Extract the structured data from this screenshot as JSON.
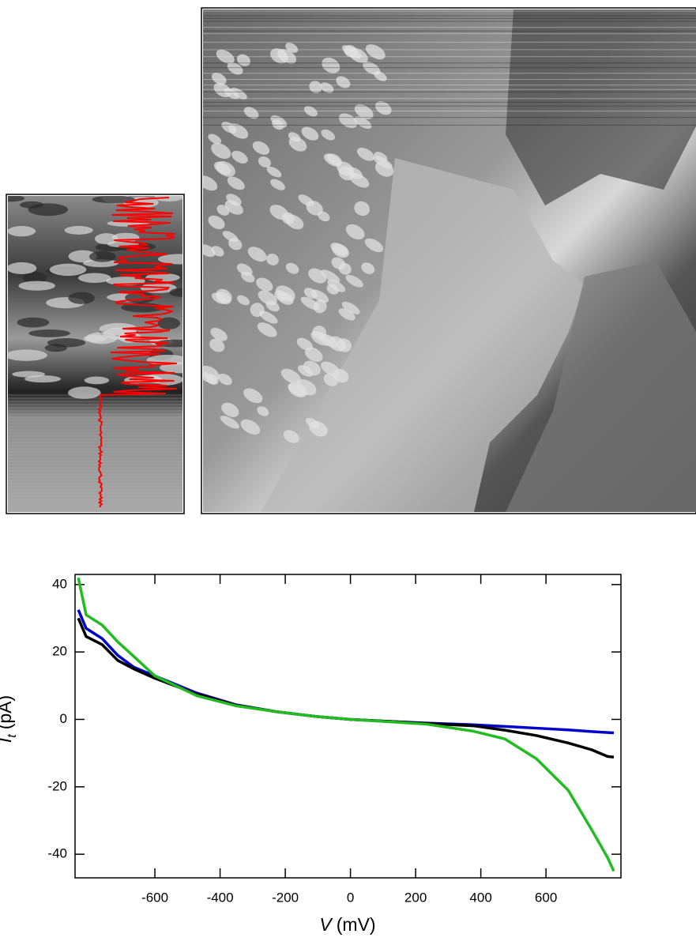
{
  "chart_data": {
    "type": "line",
    "xlabel": {
      "symbol": "V",
      "unit": "(mV)"
    },
    "ylabel": {
      "symbol": "I",
      "subscript": "t",
      "unit": "(pA)"
    },
    "x": [
      -835,
      -811,
      -762,
      -714,
      -665,
      -600,
      -471,
      -350,
      -229,
      -100,
      0,
      100,
      232,
      377,
      474,
      571,
      668,
      740,
      789,
      808
    ],
    "series": [
      {
        "color": "#0000cc",
        "values": [
          32.5,
          27,
          24,
          19,
          15.5,
          12.9,
          7.8,
          4.3,
          2.3,
          0.8,
          0,
          -0.5,
          -1.1,
          -1.6,
          -2.1,
          -2.6,
          -3.1,
          -3.6,
          -3.9,
          -4
        ]
      },
      {
        "color": "#000000",
        "values": [
          30,
          24.6,
          22.2,
          17.5,
          15,
          12.2,
          7.5,
          4.2,
          2.3,
          0.8,
          0,
          -0.5,
          -1.2,
          -1.9,
          -3.2,
          -4.8,
          -7,
          -9,
          -11,
          -11.2
        ]
      },
      {
        "color": "#22bb22",
        "values": [
          42,
          31,
          28,
          23,
          18.7,
          12.9,
          7,
          4,
          2.3,
          0.8,
          0,
          -0.6,
          -1.4,
          -3.5,
          -5.8,
          -11.7,
          -21,
          -32.7,
          -41,
          -45
        ]
      }
    ],
    "xlim": [
      -845,
      830
    ],
    "ylim": [
      -47,
      43
    ],
    "xticks": [
      -600,
      -400,
      -200,
      0,
      200,
      400,
      600
    ],
    "yticks": [
      -40,
      -20,
      0,
      20,
      40
    ]
  }
}
